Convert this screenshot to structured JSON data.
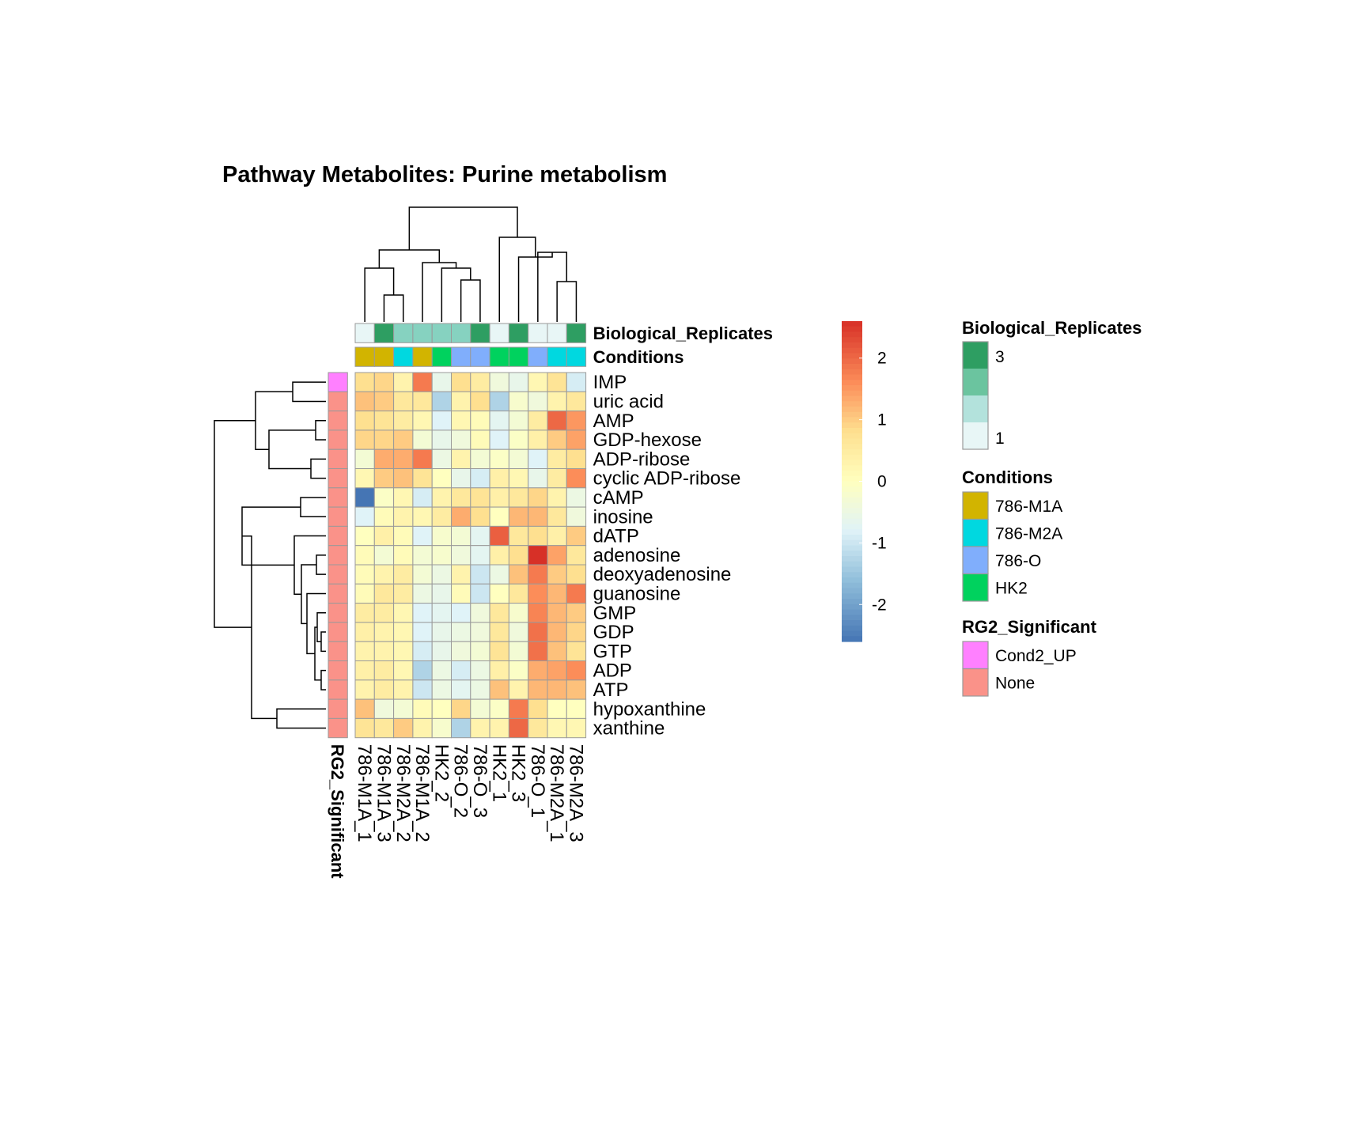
{
  "chart_data": {
    "type": "heatmap",
    "title": "Pathway  Metabolites:  Purine metabolism",
    "columns": [
      "786-M1A_1",
      "786-M1A_3",
      "786-M2A_2",
      "786-M1A_2",
      "HK2_2",
      "786-O_2",
      "786-O_3",
      "HK2_1",
      "HK2_3",
      "786-O_1",
      "786-M2A_1",
      "786-M2A_3"
    ],
    "rows": [
      "IMP",
      "uric acid",
      "AMP",
      "GDP-hexose",
      "ADP-ribose",
      "cyclic ADP-ribose",
      "cAMP",
      "inosine",
      "dATP",
      "adenosine",
      "deoxyadenosine",
      "guanosine",
      "GMP",
      "GDP",
      "GTP",
      "ADP",
      "ATP",
      "hypoxanthine",
      "xanthine"
    ],
    "values": [
      [
        0.8,
        0.9,
        0.3,
        1.8,
        -0.6,
        0.8,
        0.5,
        -0.4,
        -0.6,
        0.2,
        0.7,
        -0.9
      ],
      [
        1.1,
        1.0,
        0.6,
        0.6,
        -1.3,
        0.3,
        0.8,
        -1.3,
        -0.2,
        -0.4,
        0.3,
        0.6
      ],
      [
        0.8,
        0.7,
        0.5,
        0.2,
        -0.8,
        0.2,
        0.1,
        -0.7,
        -0.3,
        0.5,
        2.0,
        1.5
      ],
      [
        0.9,
        0.9,
        1.0,
        -0.3,
        -0.6,
        -0.4,
        0.1,
        -0.8,
        -0.1,
        0.4,
        1.0,
        1.4
      ],
      [
        -0.3,
        1.3,
        1.3,
        1.8,
        -0.5,
        0.3,
        -0.3,
        -0.1,
        -0.3,
        -0.8,
        0.5,
        0.8
      ],
      [
        0.2,
        1.0,
        1.1,
        0.7,
        0.0,
        -0.6,
        -0.9,
        0.4,
        0.2,
        -0.6,
        0.5,
        1.6
      ],
      [
        -2.6,
        -0.1,
        0.2,
        -0.9,
        0.3,
        0.6,
        0.7,
        0.4,
        0.6,
        0.9,
        0.3,
        -0.5
      ],
      [
        -0.8,
        0.1,
        0.3,
        0.2,
        0.5,
        1.3,
        0.8,
        0.0,
        1.2,
        1.2,
        0.6,
        -0.4
      ],
      [
        0.0,
        0.4,
        0.1,
        -0.8,
        -0.2,
        -0.3,
        -0.7,
        2.1,
        0.6,
        0.8,
        0.4,
        1.0
      ],
      [
        0.1,
        -0.3,
        0.1,
        -0.3,
        -0.2,
        -0.4,
        -0.7,
        0.4,
        0.8,
        2.6,
        1.4,
        0.6
      ],
      [
        0.1,
        0.3,
        0.5,
        -0.3,
        -0.5,
        0.3,
        -1.0,
        -0.5,
        1.1,
        1.8,
        1.0,
        0.8
      ],
      [
        0.1,
        0.6,
        0.5,
        -0.5,
        -0.6,
        0.1,
        -1.0,
        0.0,
        0.6,
        1.6,
        1.2,
        1.8
      ],
      [
        0.5,
        0.5,
        0.2,
        -0.8,
        -0.7,
        -0.8,
        -0.4,
        0.6,
        -0.2,
        1.7,
        1.2,
        1.0
      ],
      [
        0.4,
        0.3,
        0.2,
        -0.8,
        -0.6,
        -0.5,
        -0.4,
        0.6,
        -0.4,
        1.9,
        1.2,
        0.9
      ],
      [
        0.3,
        0.3,
        0.2,
        -0.9,
        -0.6,
        -0.4,
        -0.3,
        0.7,
        -0.3,
        1.9,
        1.1,
        0.7
      ],
      [
        0.4,
        0.5,
        0.2,
        -1.3,
        -0.5,
        -0.9,
        -0.5,
        0.4,
        -0.1,
        1.3,
        1.4,
        1.6
      ],
      [
        0.3,
        0.5,
        0.3,
        -1.0,
        -0.5,
        -0.7,
        -0.5,
        1.1,
        0.3,
        1.2,
        1.2,
        1.1
      ],
      [
        1.1,
        -0.4,
        -0.3,
        0.1,
        0.0,
        0.9,
        -0.3,
        -0.1,
        1.8,
        0.8,
        0.0,
        0.0
      ],
      [
        0.7,
        0.6,
        1.0,
        0.3,
        -0.2,
        -1.3,
        0.3,
        0.3,
        2.0,
        0.6,
        0.2,
        0.2
      ]
    ],
    "color_scale": {
      "min": -2.6,
      "max": 2.6,
      "ticks": [
        2,
        1,
        0,
        -1,
        -2
      ]
    },
    "column_annotations": [
      {
        "name": "Biological_Replicates",
        "values": [
          1,
          3,
          2,
          2,
          2,
          2,
          3,
          1,
          3,
          1,
          1,
          3
        ],
        "legend": [
          {
            "label": "3",
            "color": "#2e9e62"
          },
          {
            "label": "1",
            "color": "#e8f6f6"
          }
        ],
        "colors": [
          "#e8f6f6",
          "#2e9e62",
          "#86d2c0",
          "#86d2c0",
          "#86d2c0",
          "#86d2c0",
          "#2e9e62",
          "#e8f6f6",
          "#2e9e62",
          "#e8f6f6",
          "#e8f6f6",
          "#2e9e62"
        ],
        "legend_gradient": [
          "#2e9e62",
          "#6bc49f",
          "#b3e2dc",
          "#e8f6f6"
        ]
      },
      {
        "name": "Conditions",
        "values": [
          "786-M1A",
          "786-M1A",
          "786-M2A",
          "786-M1A",
          "HK2",
          "786-O",
          "786-O",
          "HK2",
          "HK2",
          "786-O",
          "786-M2A",
          "786-M2A"
        ],
        "legend": [
          {
            "label": "786-M1A",
            "color": "#d2b400"
          },
          {
            "label": "786-M2A",
            "color": "#00d8e0"
          },
          {
            "label": "786-O",
            "color": "#80aefc"
          },
          {
            "label": "HK2",
            "color": "#00d25e"
          }
        ]
      }
    ],
    "row_annotations": [
      {
        "name": "RG2_Significant",
        "values": [
          "Cond2_UP",
          "None",
          "None",
          "None",
          "None",
          "None",
          "None",
          "None",
          "None",
          "None",
          "None",
          "None",
          "None",
          "None",
          "None",
          "None",
          "None",
          "None",
          "None"
        ],
        "legend": [
          {
            "label": "Cond2_UP",
            "color": "#ff80ff"
          },
          {
            "label": "None",
            "color": "#fa9289"
          }
        ]
      }
    ],
    "column_dendrogram": true,
    "row_dendrogram": true,
    "legend_position": "right"
  }
}
